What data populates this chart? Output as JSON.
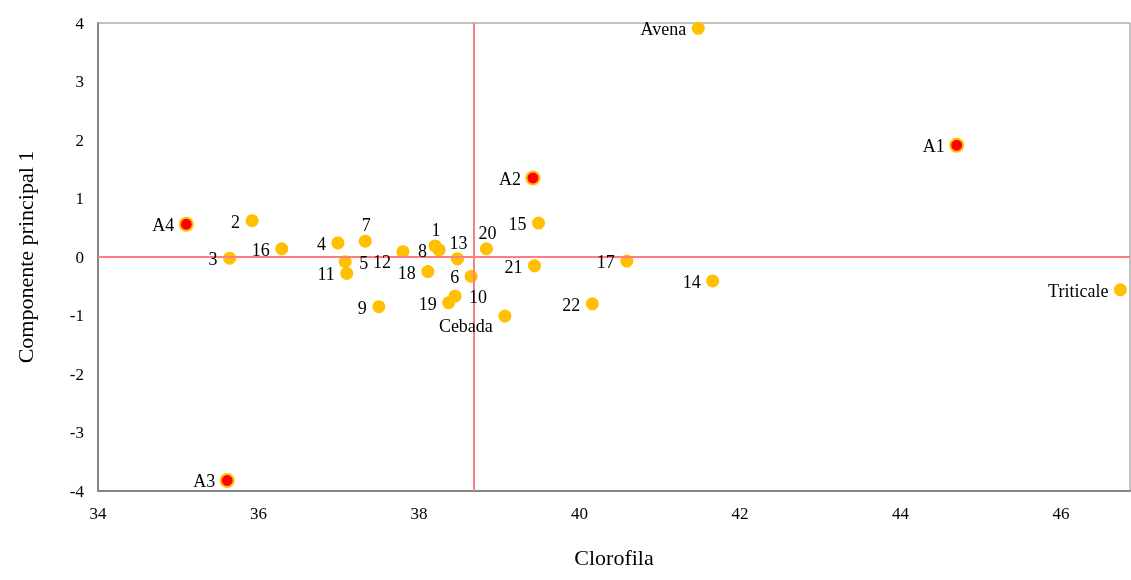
{
  "chart_data": {
    "type": "scatter",
    "xlabel": "Clorofila",
    "ylabel": "Componente principal 1",
    "xlim": [
      34,
      46.86
    ],
    "xticks": [
      34,
      36,
      38,
      40,
      42,
      44,
      46
    ],
    "ylim": [
      -4,
      4
    ],
    "yticks": [
      -4,
      -3,
      -2,
      -1,
      0,
      1,
      2,
      3,
      4
    ],
    "grid": false,
    "marker": "circle",
    "series": [
      {
        "color": "#ffc000",
        "x": [
          41.48,
          35.92,
          35.64,
          36.29,
          36.99,
          37.33,
          37.08,
          37.1,
          37.8,
          38.2,
          38.25,
          38.84,
          38.48,
          38.11,
          38.65,
          38.45,
          38.37,
          37.5,
          39.07,
          39.49,
          39.44,
          40.59,
          41.66,
          40.16,
          46.74
        ],
        "values": [
          3.91,
          0.62,
          -0.02,
          0.14,
          0.24,
          0.27,
          -0.08,
          -0.28,
          0.09,
          0.19,
          0.12,
          0.14,
          -0.03,
          -0.25,
          -0.33,
          -0.67,
          -0.78,
          -0.85,
          -1.01,
          0.58,
          -0.15,
          -0.07,
          -0.41,
          -0.8,
          -0.56
        ]
      },
      {
        "color": "#ff0000",
        "x": [
          44.7,
          39.42,
          35.61,
          35.1
        ],
        "values": [
          1.91,
          1.35,
          -3.82,
          0.56
        ]
      }
    ],
    "annotations": [
      {
        "text": "Avena",
        "x": 41.48,
        "y": 3.91
      },
      {
        "text": "2",
        "x": 35.92,
        "y": 0.62
      },
      {
        "text": "3",
        "x": 35.64,
        "y": -0.02
      },
      {
        "text": "16",
        "x": 36.29,
        "y": 0.14
      },
      {
        "text": "4",
        "x": 36.99,
        "y": 0.24
      },
      {
        "text": "7",
        "x": 37.33,
        "y": 0.27
      },
      {
        "text": "5",
        "x": 37.08,
        "y": -0.08
      },
      {
        "text": "11",
        "x": 37.1,
        "y": -0.28
      },
      {
        "text": "12",
        "x": 37.8,
        "y": 0.09
      },
      {
        "text": "1",
        "x": 38.2,
        "y": 0.19
      },
      {
        "text": "8",
        "x": 38.25,
        "y": 0.12
      },
      {
        "text": "20",
        "x": 38.84,
        "y": 0.14
      },
      {
        "text": "13",
        "x": 38.48,
        "y": -0.03
      },
      {
        "text": "18",
        "x": 38.11,
        "y": -0.25
      },
      {
        "text": "6",
        "x": 38.65,
        "y": -0.33
      },
      {
        "text": "10",
        "x": 38.45,
        "y": -0.67
      },
      {
        "text": "19",
        "x": 38.37,
        "y": -0.78
      },
      {
        "text": "9",
        "x": 37.5,
        "y": -0.85
      },
      {
        "text": "Cebada",
        "x": 39.07,
        "y": -1.01
      },
      {
        "text": "15",
        "x": 39.49,
        "y": 0.58
      },
      {
        "text": "21",
        "x": 39.44,
        "y": -0.15
      },
      {
        "text": "17",
        "x": 40.59,
        "y": -0.07
      },
      {
        "text": "14",
        "x": 41.66,
        "y": -0.41
      },
      {
        "text": "22",
        "x": 40.16,
        "y": -0.8
      },
      {
        "text": "Triticale",
        "x": 46.74,
        "y": -0.56
      },
      {
        "text": "A1",
        "x": 44.7,
        "y": 1.91
      },
      {
        "text": "A2",
        "x": 39.42,
        "y": 1.35
      },
      {
        "text": "A3",
        "x": 35.61,
        "y": -3.82
      },
      {
        "text": "A4",
        "x": 35.1,
        "y": 0.56
      }
    ],
    "ref_lines": [
      {
        "axis": "x",
        "value": 38.68,
        "color": "#ff7c80"
      },
      {
        "axis": "y",
        "value": 0,
        "color": "#ff7c80"
      }
    ]
  }
}
